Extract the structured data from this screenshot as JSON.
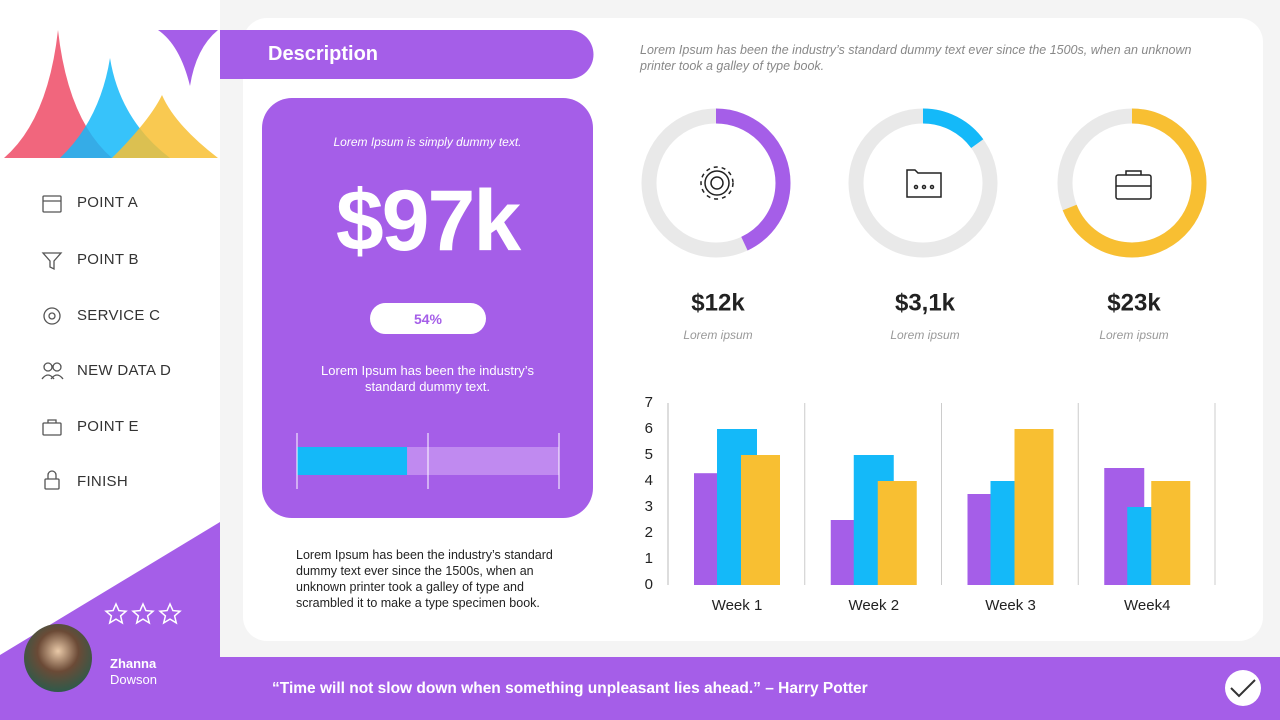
{
  "sidebar": {
    "menu": [
      "POINT A",
      "POINT B",
      "SERVICE C",
      "NEW DATA D",
      "POINT E",
      "FINISH"
    ],
    "profile": {
      "name": "Zhanna",
      "surname": "Dowson"
    }
  },
  "description": {
    "title": "Description",
    "subtitle": "Lorem Ipsum is simply dummy text.",
    "amount": "$97k",
    "badge": "54%",
    "text": "Lorem Ipsum has been the industry’s standard dummy text.",
    "progress": 42,
    "note": "Lorem Ipsum has been the industry’s standard dummy text ever since the 1500s, when an unknown printer took a galley of type and scrambled it to make a type specimen book."
  },
  "intro": "Lorem Ipsum has been the industry’s standard dummy text ever since the 1500s, when an unknown printer took a galley of type book.",
  "rings": [
    {
      "amount": "$12k",
      "caption": "Lorem ipsum",
      "percent": 43,
      "color": "#a55ee8"
    },
    {
      "amount": "$3,1k",
      "caption": "Lorem ipsum",
      "percent": 15,
      "color": "#14b9f9"
    },
    {
      "amount": "$23k",
      "caption": "Lorem ipsum",
      "percent": 69,
      "color": "#f8bf32"
    }
  ],
  "chart_data": {
    "type": "bar",
    "categories": [
      "Week 1",
      "Week 2",
      "Week 3",
      "Week4"
    ],
    "series": [
      {
        "color": "#a55ee8",
        "values": [
          4.3,
          2.5,
          3.5,
          4.5
        ]
      },
      {
        "color": "#14b9f9",
        "values": [
          6,
          5,
          4,
          3
        ]
      },
      {
        "color": "#f8bf32",
        "values": [
          5,
          4,
          6,
          4
        ]
      }
    ],
    "ylim": [
      0,
      7
    ],
    "yticks": [
      0,
      1,
      2,
      3,
      4,
      5,
      6,
      7
    ],
    "grid": false
  },
  "footer": {
    "quote": "“Time will not slow down when something unpleasant lies ahead.” – Harry Potter"
  }
}
